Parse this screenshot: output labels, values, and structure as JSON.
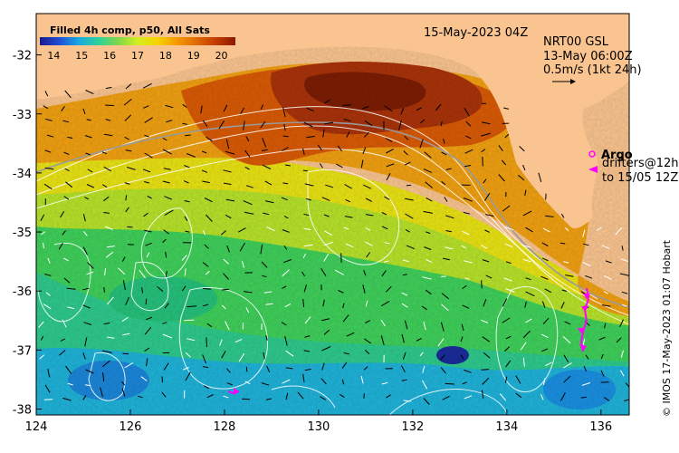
{
  "map": {
    "timestamp": "15-May-2023 04Z",
    "credit": "© IMOS 17-May-2023 01:07 Hobart",
    "lon_ticks": [
      "124",
      "126",
      "128",
      "130",
      "132",
      "134",
      "136"
    ],
    "lat_ticks": [
      "-32",
      "-33",
      "-34",
      "-35",
      "-36",
      "-37",
      "-38"
    ],
    "lon_range": [
      124,
      136.6
    ],
    "lat_range": [
      -38.1,
      -31.3
    ],
    "land_color": "#f9c48f",
    "colorbar": {
      "title": "Filled 4h comp, p50, All Sats",
      "ticks": [
        "14",
        "15",
        "16",
        "17",
        "18",
        "19",
        "20"
      ],
      "range_degC": [
        13.5,
        20.5
      ],
      "colors": [
        "#1a1a8c",
        "#1f4fd6",
        "#19a9e0",
        "#2ed29a",
        "#7fd64a",
        "#d4ee22",
        "#f6d400",
        "#f59a00",
        "#e06a00",
        "#c23b00",
        "#8c1a00"
      ]
    },
    "currents": {
      "label_line1": "NRT00 GSL",
      "label_line2": "13-May 06:00Z",
      "label_line3": "0.5m/s (1kt 24h)",
      "arrow_color": "#000000"
    },
    "drifters": {
      "argo_label": "Argo",
      "drifters_line1": "drifters@12h",
      "drifters_line2": "to 15/05 12Z",
      "color": "#ff00ff"
    }
  }
}
